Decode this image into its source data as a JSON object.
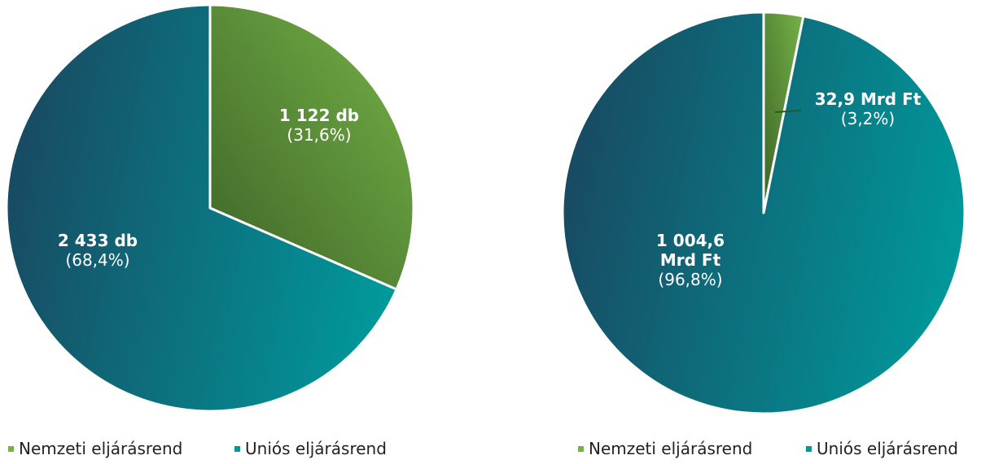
{
  "chart_data": [
    {
      "type": "pie",
      "categories": [
        "Nemzeti eljárásrend",
        "Uniós eljárásrend"
      ],
      "values": [
        1122,
        2433
      ],
      "value_labels": [
        "1 122 db",
        "2 433 db"
      ],
      "percentage_labels": [
        "(31,6%)",
        "(68,4%)"
      ],
      "colors": [
        [
          "#3d6428",
          "#76b347"
        ],
        [
          "#184a62",
          "#00999b"
        ]
      ]
    },
    {
      "type": "pie",
      "categories": [
        "Nemzeti eljárásrend",
        "Uniós eljárásrend"
      ],
      "values": [
        32.9,
        1004.6
      ],
      "value_labels": [
        "32,9 Mrd Ft",
        "1 004,6 Mrd Ft"
      ],
      "percentage_labels": [
        "(3,2%)",
        "(96,8%)"
      ],
      "colors": [
        [
          "#3d6428",
          "#76b347"
        ],
        [
          "#184a62",
          "#00999b"
        ]
      ]
    }
  ]
}
